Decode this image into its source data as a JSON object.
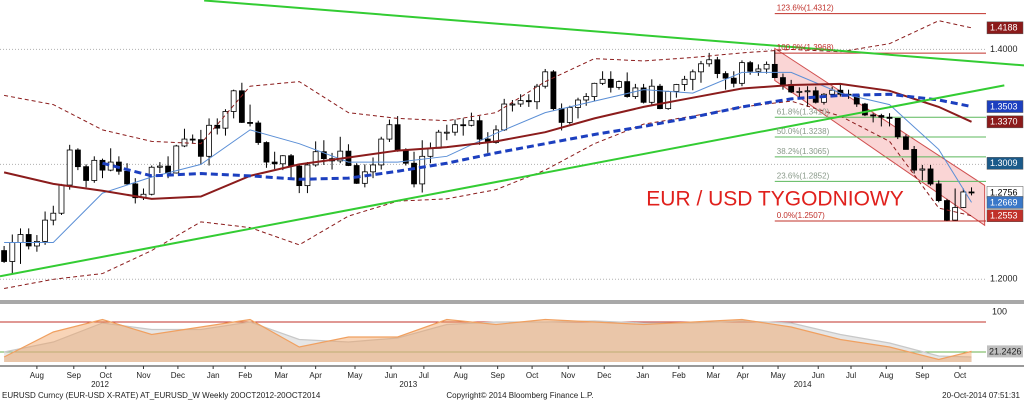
{
  "chart_data": {
    "type": "candlestick",
    "title": "EUR / USD TYGODNIOWY",
    "footer_left": "EURUSD Curncy (EUR-USD X-RATE) AT_EURUSD_W   Weekly 20OCT2012-20OCT2014",
    "footer_center": "Copyright© 2014 Bloomberg Finance L.P.",
    "footer_right": "20-Oct-2014 07:51:31",
    "xlim": [
      -0.5,
      124.4
    ],
    "xticks": [
      {
        "value": 4.0,
        "label": "Aug"
      },
      {
        "value": 8.5,
        "label": "Sep"
      },
      {
        "value": 12.4,
        "label": "Oct"
      },
      {
        "value": 17.0,
        "label": "Nov"
      },
      {
        "value": 21.2,
        "label": "Dec"
      },
      {
        "value": 25.5,
        "label": "Jan"
      },
      {
        "value": 29.4,
        "label": "Feb"
      },
      {
        "value": 33.8,
        "label": "Mar"
      },
      {
        "value": 38.0,
        "label": "Apr"
      },
      {
        "value": 42.8,
        "label": "May"
      },
      {
        "value": 47.2,
        "label": "Jun"
      },
      {
        "value": 51.2,
        "label": "Jul"
      },
      {
        "value": 55.7,
        "label": "Aug"
      },
      {
        "value": 60.2,
        "label": "Sep"
      },
      {
        "value": 64.4,
        "label": "Oct"
      },
      {
        "value": 68.8,
        "label": "Nov"
      },
      {
        "value": 73.2,
        "label": "Dec"
      },
      {
        "value": 77.9,
        "label": "Jan"
      },
      {
        "value": 82.3,
        "label": "Feb"
      },
      {
        "value": 86.5,
        "label": "Mar"
      },
      {
        "value": 90.1,
        "label": "Apr"
      },
      {
        "value": 94.4,
        "label": "May"
      },
      {
        "value": 99.3,
        "label": "Jun"
      },
      {
        "value": 103.3,
        "label": "Jul"
      },
      {
        "value": 107.6,
        "label": "Aug"
      },
      {
        "value": 112.0,
        "label": "Sep"
      },
      {
        "value": 116.6,
        "label": "Oct"
      }
    ],
    "year_ticks": [
      {
        "value": 11.7,
        "label": "2012"
      },
      {
        "value": 49.3,
        "label": "2013"
      },
      {
        "value": 97.4,
        "label": "2014"
      }
    ],
    "ylim": [
      1.182,
      1.443
    ],
    "yticks": [
      {
        "value": 1.2,
        "label": "1.2000"
      },
      {
        "value": 1.3,
        "label": "1.3000"
      },
      {
        "value": 1.4,
        "label": "1.4000"
      }
    ],
    "grid": true,
    "up_color": "#ffffff",
    "down_color": "#000000",
    "ohlc": [
      [
        1.225,
        1.229,
        1.2143,
        1.2155
      ],
      [
        1.2155,
        1.239,
        1.2042,
        1.232
      ],
      [
        1.232,
        1.2443,
        1.2134,
        1.239
      ],
      [
        1.239,
        1.2443,
        1.226,
        1.229
      ],
      [
        1.229,
        1.2385,
        1.224,
        1.233
      ],
      [
        1.233,
        1.259,
        1.23,
        1.2515
      ],
      [
        1.2515,
        1.264,
        1.247,
        1.2575
      ],
      [
        1.2575,
        1.283,
        1.256,
        1.282
      ],
      [
        1.282,
        1.317,
        1.278,
        1.3125
      ],
      [
        1.3125,
        1.314,
        1.295,
        1.298
      ],
      [
        1.298,
        1.3,
        1.28,
        1.286
      ],
      [
        1.286,
        1.307,
        1.284,
        1.3035
      ],
      [
        1.3035,
        1.305,
        1.288,
        1.295
      ],
      [
        1.295,
        1.314,
        1.294,
        1.302
      ],
      [
        1.302,
        1.307,
        1.291,
        1.294
      ],
      [
        1.294,
        1.301,
        1.282,
        1.283
      ],
      [
        1.283,
        1.288,
        1.266,
        1.271
      ],
      [
        1.271,
        1.279,
        1.269,
        1.274
      ],
      [
        1.274,
        1.299,
        1.273,
        1.2975
      ],
      [
        1.2975,
        1.302,
        1.2925,
        1.2985
      ],
      [
        1.2985,
        1.307,
        1.288,
        1.2925
      ],
      [
        1.2925,
        1.317,
        1.292,
        1.316
      ],
      [
        1.316,
        1.331,
        1.315,
        1.322
      ],
      [
        1.322,
        1.326,
        1.318,
        1.3215
      ],
      [
        1.3215,
        1.33,
        1.3,
        1.307
      ],
      [
        1.307,
        1.34,
        1.299,
        1.334
      ],
      [
        1.334,
        1.34,
        1.326,
        1.3315
      ],
      [
        1.3315,
        1.348,
        1.325,
        1.346
      ],
      [
        1.346,
        1.365,
        1.34,
        1.364
      ],
      [
        1.364,
        1.371,
        1.336,
        1.3365
      ],
      [
        1.3365,
        1.352,
        1.333,
        1.336
      ],
      [
        1.336,
        1.338,
        1.317,
        1.319
      ],
      [
        1.319,
        1.32,
        1.297,
        1.302
      ],
      [
        1.302,
        1.311,
        1.296,
        1.3005
      ],
      [
        1.3005,
        1.308,
        1.295,
        1.3075
      ],
      [
        1.3075,
        1.309,
        1.288,
        1.2985
      ],
      [
        1.2985,
        1.3,
        1.275,
        1.2815
      ],
      [
        1.2815,
        1.302,
        1.275,
        1.2995
      ],
      [
        1.2995,
        1.32,
        1.298,
        1.311
      ],
      [
        1.311,
        1.321,
        1.2995,
        1.305
      ],
      [
        1.305,
        1.31,
        1.2955,
        1.303
      ],
      [
        1.303,
        1.324,
        1.301,
        1.3115
      ],
      [
        1.3115,
        1.3175,
        1.2985,
        1.299
      ],
      [
        1.299,
        1.301,
        1.283,
        1.2835
      ],
      [
        1.2835,
        1.3,
        1.28,
        1.2935
      ],
      [
        1.2935,
        1.306,
        1.288,
        1.2995
      ],
      [
        1.2995,
        1.324,
        1.2955,
        1.322
      ],
      [
        1.322,
        1.339,
        1.3195,
        1.3345
      ],
      [
        1.3345,
        1.342,
        1.311,
        1.312
      ],
      [
        1.312,
        1.314,
        1.299,
        1.301
      ],
      [
        1.301,
        1.311,
        1.28,
        1.283
      ],
      [
        1.283,
        1.321,
        1.2755,
        1.307
      ],
      [
        1.307,
        1.319,
        1.301,
        1.314
      ],
      [
        1.314,
        1.33,
        1.314,
        1.328
      ],
      [
        1.328,
        1.3345,
        1.321,
        1.328
      ],
      [
        1.328,
        1.339,
        1.325,
        1.3345
      ],
      [
        1.3345,
        1.34,
        1.325,
        1.334
      ],
      [
        1.334,
        1.345,
        1.333,
        1.338
      ],
      [
        1.338,
        1.342,
        1.317,
        1.322
      ],
      [
        1.322,
        1.328,
        1.31,
        1.319
      ],
      [
        1.319,
        1.334,
        1.318,
        1.33
      ],
      [
        1.33,
        1.357,
        1.329,
        1.3525
      ],
      [
        1.3525,
        1.356,
        1.346,
        1.3525
      ],
      [
        1.3525,
        1.361,
        1.35,
        1.3555
      ],
      [
        1.3555,
        1.361,
        1.35,
        1.3545
      ],
      [
        1.3545,
        1.37,
        1.348,
        1.368
      ],
      [
        1.368,
        1.383,
        1.366,
        1.3805
      ],
      [
        1.3805,
        1.382,
        1.347,
        1.3485
      ],
      [
        1.3485,
        1.353,
        1.3295,
        1.3365
      ],
      [
        1.3365,
        1.351,
        1.335,
        1.3495
      ],
      [
        1.3495,
        1.358,
        1.34,
        1.356
      ],
      [
        1.356,
        1.362,
        1.351,
        1.359
      ],
      [
        1.359,
        1.371,
        1.355,
        1.3705
      ],
      [
        1.3705,
        1.381,
        1.369,
        1.374
      ],
      [
        1.374,
        1.381,
        1.3625,
        1.367
      ],
      [
        1.367,
        1.373,
        1.365,
        1.372
      ],
      [
        1.372,
        1.38,
        1.358,
        1.359
      ],
      [
        1.359,
        1.37,
        1.357,
        1.3665
      ],
      [
        1.3665,
        1.37,
        1.353,
        1.354
      ],
      [
        1.354,
        1.374,
        1.351,
        1.368
      ],
      [
        1.368,
        1.37,
        1.348,
        1.3485
      ],
      [
        1.3485,
        1.364,
        1.3475,
        1.3635
      ],
      [
        1.3635,
        1.37,
        1.358,
        1.3695
      ],
      [
        1.3695,
        1.377,
        1.364,
        1.374
      ],
      [
        1.374,
        1.3825,
        1.3645,
        1.3805
      ],
      [
        1.3805,
        1.39,
        1.371,
        1.3875
      ],
      [
        1.3875,
        1.397,
        1.385,
        1.391
      ],
      [
        1.391,
        1.3935,
        1.375,
        1.379
      ],
      [
        1.379,
        1.381,
        1.365,
        1.375
      ],
      [
        1.375,
        1.381,
        1.367,
        1.3705
      ],
      [
        1.3705,
        1.3905,
        1.368,
        1.3885
      ],
      [
        1.3885,
        1.39,
        1.378,
        1.381
      ],
      [
        1.381,
        1.387,
        1.377,
        1.383
      ],
      [
        1.383,
        1.3895,
        1.379,
        1.387
      ],
      [
        1.387,
        1.3993,
        1.375,
        1.3755
      ],
      [
        1.3755,
        1.379,
        1.365,
        1.3695
      ],
      [
        1.3695,
        1.3735,
        1.362,
        1.363
      ],
      [
        1.363,
        1.367,
        1.3585,
        1.3635
      ],
      [
        1.3635,
        1.368,
        1.35,
        1.364
      ],
      [
        1.364,
        1.3675,
        1.353,
        1.354
      ],
      [
        1.354,
        1.362,
        1.352,
        1.361
      ],
      [
        1.361,
        1.3675,
        1.359,
        1.3645
      ],
      [
        1.3645,
        1.37,
        1.359,
        1.361
      ],
      [
        1.361,
        1.365,
        1.357,
        1.3605
      ],
      [
        1.3605,
        1.3615,
        1.35,
        1.3525
      ],
      [
        1.3525,
        1.3535,
        1.342,
        1.343
      ],
      [
        1.343,
        1.3445,
        1.3365,
        1.3425
      ],
      [
        1.3425,
        1.344,
        1.333,
        1.341
      ],
      [
        1.341,
        1.3445,
        1.333,
        1.34
      ],
      [
        1.34,
        1.34,
        1.322,
        1.324
      ],
      [
        1.324,
        1.326,
        1.313,
        1.313
      ],
      [
        1.313,
        1.316,
        1.292,
        1.295
      ],
      [
        1.295,
        1.2995,
        1.286,
        1.296
      ],
      [
        1.296,
        1.2995,
        1.2815,
        1.283
      ],
      [
        1.283,
        1.286,
        1.267,
        1.2685
      ],
      [
        1.2685,
        1.27,
        1.2507,
        1.2515
      ],
      [
        1.2515,
        1.279,
        1.251,
        1.2625
      ],
      [
        1.2625,
        1.279,
        1.262,
        1.276
      ],
      [
        1.276,
        1.28,
        1.273,
        1.2756
      ]
    ],
    "lines": [
      {
        "color": "#8b1c1c",
        "width": 1,
        "dash": "4,3",
        "x": [
          0,
          6,
          12,
          18,
          24,
          30,
          36,
          42,
          48,
          54,
          60,
          66,
          72,
          78,
          84,
          90,
          96,
          102,
          108,
          114,
          118
        ],
        "values": [
          1.36,
          1.352,
          1.33,
          1.32,
          1.318,
          1.368,
          1.372,
          1.345,
          1.34,
          1.338,
          1.345,
          1.372,
          1.392,
          1.39,
          1.393,
          1.397,
          1.4,
          1.398,
          1.405,
          1.425,
          1.4188
        ]
      },
      {
        "color": "#8b1c1c",
        "width": 1,
        "dash": "4,3",
        "x": [
          0,
          6,
          12,
          18,
          24,
          30,
          36,
          42,
          48,
          54,
          60,
          66,
          72,
          78,
          84,
          90,
          96,
          102,
          108,
          114,
          118
        ],
        "values": [
          1.192,
          1.2,
          1.205,
          1.225,
          1.25,
          1.245,
          1.23,
          1.255,
          1.268,
          1.27,
          1.278,
          1.295,
          1.318,
          1.335,
          1.342,
          1.35,
          1.355,
          1.342,
          1.32,
          1.262,
          1.2553
        ]
      },
      {
        "color": "#5b8fd6",
        "width": 1,
        "dash": "none",
        "x": [
          0,
          6,
          12,
          18,
          24,
          30,
          36,
          42,
          48,
          54,
          60,
          66,
          72,
          78,
          84,
          90,
          96,
          102,
          108,
          114,
          118
        ],
        "values": [
          1.232,
          1.232,
          1.275,
          1.289,
          1.3,
          1.33,
          1.318,
          1.302,
          1.302,
          1.307,
          1.327,
          1.345,
          1.355,
          1.365,
          1.362,
          1.38,
          1.38,
          1.362,
          1.352,
          1.313,
          1.2669
        ]
      },
      {
        "color": "#8b1c1c",
        "width": 2,
        "dash": "none",
        "x": [
          0,
          6,
          12,
          18,
          24,
          30,
          36,
          42,
          48,
          54,
          60,
          66,
          72,
          78,
          84,
          90,
          96,
          102,
          108,
          114,
          118
        ],
        "values": [
          1.293,
          1.283,
          1.277,
          1.27,
          1.272,
          1.29,
          1.3,
          1.306,
          1.312,
          1.315,
          1.32,
          1.328,
          1.34,
          1.35,
          1.358,
          1.366,
          1.369,
          1.37,
          1.364,
          1.35,
          1.337
        ]
      },
      {
        "color": "#1c3fbf",
        "width": 3,
        "dash": "7,4",
        "x": [
          12,
          18,
          24,
          30,
          36,
          42,
          48,
          54,
          60,
          66,
          72,
          78,
          84,
          90,
          96,
          102,
          108,
          114,
          118
        ],
        "values": [
          1.301,
          1.29,
          1.292,
          1.29,
          1.287,
          1.288,
          1.294,
          1.301,
          1.31,
          1.318,
          1.326,
          1.333,
          1.341,
          1.35,
          1.357,
          1.36,
          1.361,
          1.356,
          1.3503
        ]
      }
    ],
    "trendlines": [
      {
        "color": "#33cc33",
        "x": [
          24.4,
          124.4
        ],
        "values": [
          1.4426,
          1.3861
        ]
      },
      {
        "color": "#33cc33",
        "x": [
          -0.5,
          122
        ],
        "values": [
          1.2026,
          1.3687
        ]
      }
    ],
    "channel": {
      "color": "#f6b3b3",
      "x": [
        94,
        119.6
      ],
      "upper": [
        1.4009,
        1.2817
      ],
      "lower": [
        1.373,
        1.247
      ]
    },
    "fib_start": 94,
    "fib_levels": [
      {
        "value": 1.4312,
        "label": "123.6%(1.4312)",
        "color": "#c0302a"
      },
      {
        "value": 1.3968,
        "label": "100.0%(1.3968)",
        "color": "#c0302a"
      },
      {
        "value": 1.341,
        "label": "61.8%(1.3410)",
        "color": "#5cb85c"
      },
      {
        "value": 1.3238,
        "label": "50.0%(1.3238)",
        "color": "#5cb85c"
      },
      {
        "value": 1.3065,
        "label": "38.2%(1.3065)",
        "color": "#5cb85c"
      },
      {
        "value": 1.2852,
        "label": "23.6%(1.2852)",
        "color": "#5cb85c"
      },
      {
        "value": 1.2507,
        "label": "0.0%(1.2507)",
        "color": "#c0302a"
      }
    ],
    "price_labels": [
      {
        "value": 1.4188,
        "label": "1.4188",
        "color": "#8b1a1a"
      },
      {
        "value": 1.3503,
        "label": "1.3503",
        "color": "#1c3fbf"
      },
      {
        "value": 1.337,
        "label": "1.3370",
        "color": "#8b1a1a"
      },
      {
        "value": 1.3009,
        "label": "1.3009",
        "color": "#1a5a8a"
      },
      {
        "value": 1.2756,
        "label": "1.2756",
        "color": "#ffffff"
      },
      {
        "value": 1.2669,
        "label": "1.2669",
        "color": "#3a78c8"
      },
      {
        "value": 1.2553,
        "label": "1.2553",
        "color": "#c0302a"
      }
    ],
    "oscillator": {
      "ylim": [
        -8,
        114
      ],
      "yticks": [
        100
      ],
      "levels": [
        {
          "value": 80,
          "color": "#c0302a"
        },
        {
          "value": 20,
          "color": "#6ab04c"
        }
      ],
      "x": [
        0,
        6,
        12,
        18,
        24,
        30,
        36,
        42,
        48,
        54,
        60,
        66,
        72,
        78,
        84,
        90,
        96,
        102,
        108,
        114,
        118
      ],
      "series": [
        {
          "color": "#c8c8c8",
          "values": [
            20,
            40,
            78,
            65,
            65,
            80,
            45,
            40,
            48,
            75,
            80,
            80,
            82,
            78,
            78,
            82,
            78,
            55,
            38,
            12,
            10
          ]
        },
        {
          "color": "#f0a060",
          "values": [
            10,
            60,
            85,
            55,
            70,
            85,
            30,
            50,
            50,
            85,
            75,
            85,
            80,
            75,
            80,
            85,
            70,
            45,
            30,
            5,
            21.2426
          ]
        }
      ],
      "value_label": {
        "value": 21.2426,
        "label": "21.2426",
        "color": "#bfbfbf"
      }
    }
  }
}
